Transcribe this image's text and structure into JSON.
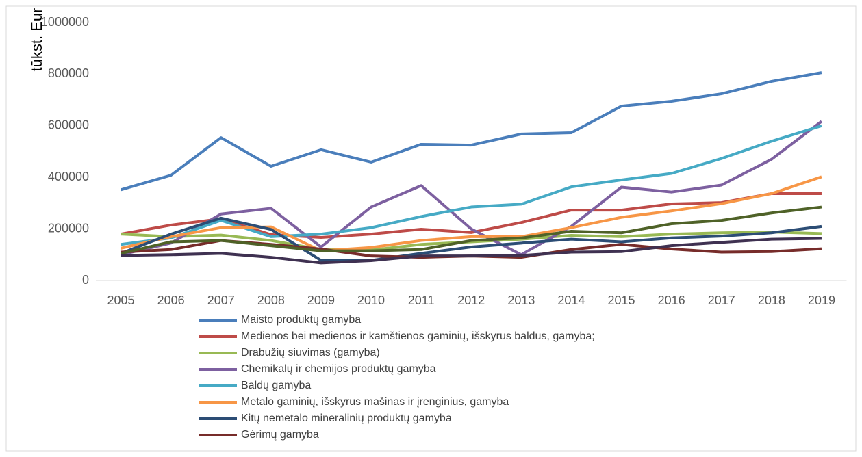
{
  "chart_data": {
    "type": "line",
    "y_label": "tūkst. Eur",
    "categories": [
      "2005",
      "2006",
      "2007",
      "2008",
      "2009",
      "2010",
      "2011",
      "2012",
      "2013",
      "2014",
      "2015",
      "2016",
      "2017",
      "2018",
      "2019"
    ],
    "ylim": [
      0,
      1000000
    ],
    "yticks": [
      0,
      200000,
      400000,
      600000,
      800000,
      1000000
    ],
    "grid": false,
    "legend": "bottom",
    "series": [
      {
        "name": "Maisto produktų gamyba",
        "color": "#4a7ebb",
        "values": [
          352000,
          408000,
          554000,
          443000,
          507000,
          459000,
          528000,
          525000,
          568000,
          573000,
          676000,
          695000,
          724000,
          772000,
          806000
        ]
      },
      {
        "name": "Medienos bei medienos ir kamštienos gaminių, išskyrus baldus, gamyba;",
        "color": "#be4b48",
        "values": [
          180000,
          215000,
          239000,
          178000,
          167000,
          180000,
          199000,
          186000,
          225000,
          273000,
          273000,
          297000,
          302000,
          337000,
          337000
        ]
      },
      {
        "name": "Drabužių siuvimas (gamyba)",
        "color": "#98b954",
        "values": [
          180000,
          170000,
          176000,
          155000,
          120000,
          118000,
          140000,
          150000,
          160000,
          175000,
          170000,
          180000,
          185000,
          188000,
          182000
        ]
      },
      {
        "name": "Chemikalų ir chemijos produktų gamyba",
        "color": "#7d60a0",
        "values": [
          100000,
          145000,
          258000,
          280000,
          130000,
          285000,
          368000,
          200000,
          100000,
          210000,
          362000,
          343000,
          370000,
          470000,
          617000
        ]
      },
      {
        "name": "Baldų gamyba",
        "color": "#46aac5",
        "values": [
          140000,
          165000,
          233000,
          170000,
          180000,
          205000,
          248000,
          285000,
          296000,
          363000,
          390000,
          415000,
          473000,
          540000,
          600000
        ]
      },
      {
        "name": "Metalo gaminių, išskyrus mašinas ir įrenginius, gamyba",
        "color": "#f79646",
        "values": [
          125000,
          170000,
          205000,
          208000,
          115000,
          128000,
          155000,
          170000,
          170000,
          205000,
          245000,
          270000,
          298000,
          337000,
          402000
        ]
      },
      {
        "name": "Kitų nemetalo mineralinių produktų gamyba",
        "color": "#2c4d75",
        "values": [
          105000,
          180000,
          242000,
          198000,
          78000,
          78000,
          105000,
          130000,
          145000,
          160000,
          150000,
          165000,
          172000,
          185000,
          210000
        ]
      },
      {
        "name": "Gėrimų gamyba",
        "color": "#772c2a",
        "values": [
          110000,
          120000,
          155000,
          140000,
          122000,
          95000,
          90000,
          95000,
          90000,
          120000,
          140000,
          122000,
          110000,
          112000,
          123000
        ]
      },
      {
        "color": "#4f6228",
        "values": [
          105000,
          150000,
          155000,
          135000,
          115000,
          115000,
          120000,
          155000,
          165000,
          191000,
          185000,
          220000,
          233000,
          262000,
          285000
        ]
      },
      {
        "color": "#3f3151",
        "values": [
          97000,
          100000,
          105000,
          90000,
          68000,
          77000,
          95000,
          95000,
          97000,
          110000,
          112000,
          135000,
          148000,
          160000,
          163000
        ]
      }
    ]
  }
}
